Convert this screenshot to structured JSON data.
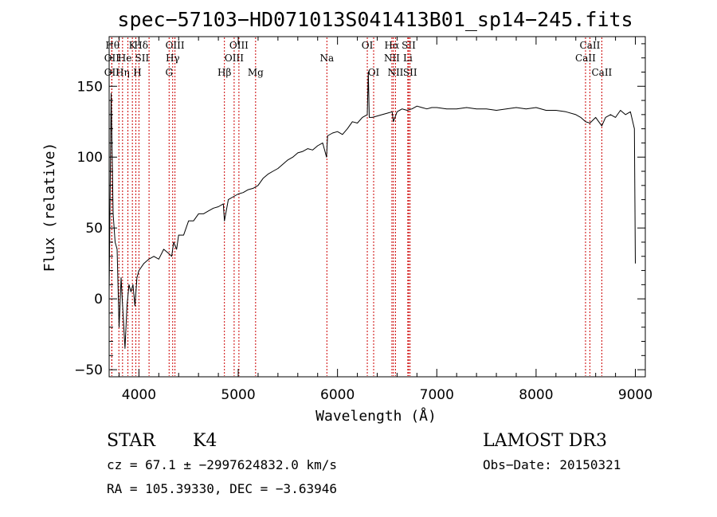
{
  "chart_data": {
    "type": "line",
    "title": "spec−57103−HD071013S041413B01_sp14−245.fits",
    "xlabel": "Wavelength (Å)",
    "ylabel": "Flux (relative)",
    "xlim": [
      3700,
      9100
    ],
    "ylim": [
      -55,
      185
    ],
    "x_ticks": [
      4000,
      5000,
      6000,
      7000,
      8000,
      9000
    ],
    "y_ticks": [
      -50,
      0,
      50,
      100,
      150
    ],
    "x_tick_labels": [
      "4000",
      "5000",
      "6000",
      "7000",
      "8000",
      "9000"
    ],
    "y_tick_labels": [
      "−50",
      "0",
      "50",
      "100",
      "150"
    ],
    "series": [
      {
        "name": "flux",
        "x": [
          3700,
          3720,
          3740,
          3760,
          3780,
          3800,
          3820,
          3840,
          3860,
          3880,
          3900,
          3920,
          3940,
          3960,
          3980,
          4000,
          4050,
          4100,
          4150,
          4200,
          4250,
          4300,
          4330,
          4350,
          4380,
          4400,
          4450,
          4500,
          4550,
          4600,
          4650,
          4700,
          4750,
          4800,
          4850,
          4861,
          4900,
          4950,
          5000,
          5050,
          5100,
          5150,
          5200,
          5250,
          5300,
          5350,
          5400,
          5450,
          5500,
          5550,
          5600,
          5650,
          5700,
          5750,
          5800,
          5850,
          5890,
          5900,
          5950,
          6000,
          6050,
          6100,
          6150,
          6200,
          6250,
          6300,
          6310,
          6320,
          6350,
          6400,
          6450,
          6500,
          6550,
          6563,
          6600,
          6650,
          6700,
          6750,
          6800,
          6850,
          6900,
          6950,
          7000,
          7100,
          7200,
          7300,
          7400,
          7500,
          7600,
          7700,
          7800,
          7900,
          8000,
          8100,
          8200,
          8300,
          8400,
          8450,
          8498,
          8542,
          8600,
          8662,
          8700,
          8750,
          8800,
          8850,
          8900,
          8950,
          8990,
          9000
        ],
        "y": [
          5,
          145,
          60,
          40,
          35,
          -20,
          15,
          -10,
          -35,
          -5,
          10,
          5,
          10,
          -5,
          15,
          20,
          25,
          28,
          30,
          28,
          35,
          32,
          30,
          40,
          35,
          45,
          45,
          55,
          55,
          60,
          60,
          62,
          64,
          65,
          67,
          55,
          70,
          72,
          74,
          75,
          77,
          78,
          80,
          85,
          88,
          90,
          92,
          95,
          98,
          100,
          103,
          104,
          106,
          105,
          108,
          110,
          100,
          115,
          117,
          118,
          116,
          120,
          125,
          124,
          128,
          130,
          160,
          128,
          128,
          129,
          130,
          131,
          132,
          125,
          132,
          134,
          133,
          134,
          136,
          135,
          134,
          135,
          135,
          134,
          134,
          135,
          134,
          134,
          133,
          134,
          135,
          134,
          135,
          133,
          133,
          132,
          130,
          128,
          125,
          124,
          128,
          122,
          128,
          130,
          128,
          133,
          130,
          132,
          120,
          25
        ]
      }
    ],
    "line_markers": [
      {
        "label": "Hθ",
        "x": 3798,
        "row": 1,
        "offset": -8
      },
      {
        "label": "OII",
        "x": 3727,
        "row": 2,
        "offset": 0
      },
      {
        "label": "OII",
        "x": 3727,
        "row": 3,
        "offset": 0
      },
      {
        "label": "Hη",
        "x": 3835,
        "row": 3,
        "offset": 0
      },
      {
        "label": "He",
        "x": 3889,
        "row": 2,
        "offset": -4
      },
      {
        "label": "K",
        "x": 3934,
        "row": 1,
        "offset": 0
      },
      {
        "label": "H",
        "x": 3969,
        "row": 3,
        "offset": 2
      },
      {
        "label": "SII",
        "x": 4000,
        "row": 2,
        "offset": 4
      },
      {
        "label": "Hδ",
        "x": 4102,
        "row": 1,
        "offset": -10
      },
      {
        "label": "OIII",
        "x": 4363,
        "row": 1,
        "offset": 0
      },
      {
        "label": "Hγ",
        "x": 4340,
        "row": 2,
        "offset": 0
      },
      {
        "label": "G",
        "x": 4304,
        "row": 3,
        "offset": 0
      },
      {
        "label": "Hβ",
        "x": 4861,
        "row": 3,
        "offset": 0
      },
      {
        "label": "OIII",
        "x": 4959,
        "row": 2,
        "offset": 0
      },
      {
        "label": "OIII",
        "x": 5007,
        "row": 1,
        "offset": 0
      },
      {
        "label": "Mg",
        "x": 5175,
        "row": 3,
        "offset": 0
      },
      {
        "label": "Na",
        "x": 5893,
        "row": 2,
        "offset": 0
      },
      {
        "label": "OI",
        "x": 6300,
        "row": 1,
        "offset": 0
      },
      {
        "label": "OI",
        "x": 6364,
        "row": 3,
        "offset": 0
      },
      {
        "label": "Hα",
        "x": 6563,
        "row": 1,
        "offset": -2
      },
      {
        "label": "NII",
        "x": 6548,
        "row": 2,
        "offset": 0
      },
      {
        "label": "NII",
        "x": 6584,
        "row": 3,
        "offset": 0
      },
      {
        "label": "SII",
        "x": 6717,
        "row": 1,
        "offset": 0
      },
      {
        "label": "Li",
        "x": 6708,
        "row": 2,
        "offset": 0
      },
      {
        "label": "SII",
        "x": 6731,
        "row": 3,
        "offset": 0
      },
      {
        "label": "CaII",
        "x": 8542,
        "row": 1,
        "offset": 0
      },
      {
        "label": "CaII",
        "x": 8498,
        "row": 2,
        "offset": 0
      },
      {
        "label": "CaII",
        "x": 8662,
        "row": 3,
        "offset": 0
      }
    ]
  },
  "info": {
    "object_class": "STAR",
    "subclass": "K4",
    "survey": "LAMOST DR3",
    "cz_line": "cz = 67.1 ± −2997624832.0 km/s",
    "obs_date": "Obs−Date: 20150321",
    "coords": "RA = 105.39330, DEC =  −3.63946"
  },
  "colors": {
    "spectrum": "#000000",
    "line_marker": "#cc0000",
    "axes": "#000000",
    "background": "#ffffff"
  }
}
